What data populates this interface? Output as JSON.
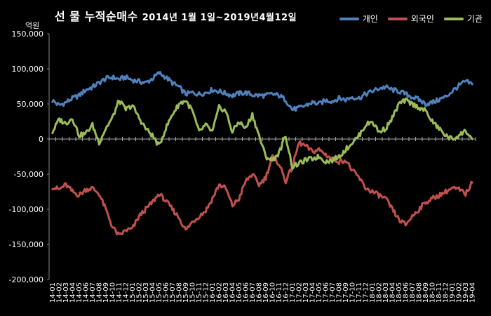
{
  "title": "선 물 누적순매수",
  "title_dates": "2014년 1월 1일~2019년4월12일",
  "unit_label": "억원",
  "chart_data": {
    "type": "line",
    "title": "선 물 누적순매수 2014년 1월 1일~2019년4월12일",
    "ylabel": "억원",
    "ylim": [
      -200000,
      150000
    ],
    "y_ticks": [
      "150,000",
      "100,000",
      "50,000",
      "0",
      "-50,000",
      "-100,000",
      "-150,000",
      "-200,000"
    ],
    "y_tick_values": [
      150000,
      100000,
      50000,
      0,
      -50000,
      -100000,
      -150000,
      -200000
    ],
    "grid": false,
    "legend": "top-right",
    "categories": [
      "14-01",
      "14-02",
      "14-03",
      "14-04",
      "14-05",
      "14-06",
      "14-07",
      "14-08",
      "14-09",
      "14-10",
      "14-11",
      "14-12",
      "15-01",
      "15-02",
      "15-03",
      "15-04",
      "15-05",
      "15-06",
      "15-07",
      "15-08",
      "15-09",
      "15-10",
      "15-11",
      "15-12",
      "16-01",
      "16-02",
      "16-03",
      "16-04",
      "16-05",
      "16-06",
      "16-07",
      "16-08",
      "16-09",
      "16-10",
      "16-11",
      "16-12",
      "17-01",
      "17-02",
      "17-03",
      "17-04",
      "17-05",
      "17-06",
      "17-07",
      "17-08",
      "17-09",
      "17-10",
      "17-11",
      "17-12",
      "18-01",
      "18-02",
      "18-03",
      "18-04",
      "18-05",
      "18-06",
      "18-07",
      "18-08",
      "18-09",
      "18-10",
      "18-11",
      "18-12",
      "19-01",
      "19-02",
      "19-03",
      "19-04"
    ],
    "series": [
      {
        "name": "개인",
        "color": "#4F81BD",
        "values": [
          55000,
          48000,
          52000,
          58000,
          62000,
          70000,
          74000,
          80000,
          86000,
          88000,
          85000,
          88000,
          84000,
          82000,
          80000,
          86000,
          94000,
          88000,
          80000,
          74000,
          64000,
          66000,
          64000,
          66000,
          70000,
          68000,
          65000,
          62000,
          65000,
          66000,
          63000,
          62000,
          62000,
          64000,
          62000,
          56000,
          42000,
          44000,
          48000,
          52000,
          50000,
          55000,
          54000,
          58000,
          56000,
          60000,
          58000,
          64000,
          68000,
          72000,
          74000,
          70000,
          68000,
          64000,
          60000,
          56000,
          50000,
          52000,
          56000,
          60000,
          68000,
          76000,
          82000,
          78000
        ]
      },
      {
        "name": "외국인",
        "color": "#C0504D",
        "values": [
          -68000,
          -72000,
          -65000,
          -75000,
          -80000,
          -72000,
          -70000,
          -78000,
          -100000,
          -125000,
          -138000,
          -130000,
          -128000,
          -110000,
          -100000,
          -90000,
          -78000,
          -88000,
          -100000,
          -112000,
          -130000,
          -118000,
          -110000,
          -102000,
          -85000,
          -65000,
          -70000,
          -95000,
          -85000,
          -60000,
          -50000,
          -65000,
          -55000,
          -25000,
          -35000,
          -60000,
          -40000,
          -5000,
          -10000,
          -18000,
          -15000,
          -22000,
          -28000,
          -32000,
          -30000,
          -45000,
          -55000,
          -70000,
          -75000,
          -80000,
          -85000,
          -100000,
          -115000,
          -122000,
          -110000,
          -100000,
          -90000,
          -85000,
          -80000,
          -75000,
          -70000,
          -72000,
          -78000,
          -62000
        ]
      },
      {
        "name": "기관",
        "color": "#9BBB59",
        "values": [
          10000,
          28000,
          22000,
          30000,
          5000,
          8000,
          20000,
          -5000,
          15000,
          30000,
          55000,
          42000,
          48000,
          30000,
          15000,
          5000,
          -10000,
          15000,
          35000,
          50000,
          55000,
          40000,
          10000,
          20000,
          10000,
          45000,
          40000,
          10000,
          25000,
          15000,
          35000,
          5000,
          -25000,
          -30000,
          -20000,
          5000,
          -40000,
          -35000,
          -30000,
          -28000,
          -25000,
          -32000,
          -30000,
          -25000,
          -15000,
          -5000,
          5000,
          20000,
          25000,
          10000,
          15000,
          30000,
          50000,
          55000,
          50000,
          45000,
          40000,
          25000,
          15000,
          5000,
          0,
          5000,
          12000,
          0
        ]
      }
    ]
  }
}
